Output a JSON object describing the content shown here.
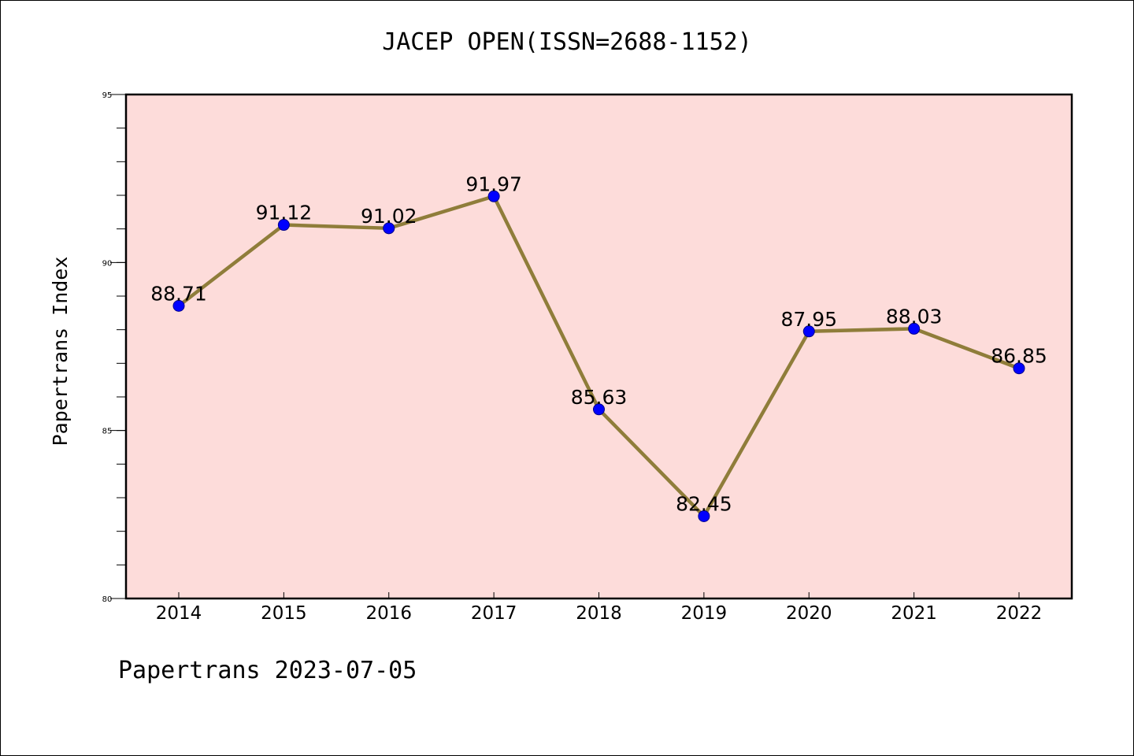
{
  "chart_data": {
    "type": "line",
    "title": "JACEP OPEN(ISSN=2688-1152)",
    "xlabel": "",
    "ylabel": "Papertrans Index",
    "categories": [
      "2014",
      "2015",
      "2016",
      "2017",
      "2018",
      "2019",
      "2020",
      "2021",
      "2022"
    ],
    "series": [
      {
        "values": [
          88.71,
          91.12,
          91.02,
          91.97,
          85.63,
          82.45,
          87.95,
          88.03,
          86.85
        ],
        "labels": [
          "88.71",
          "91.12",
          "91.02",
          "91.97",
          "85.63",
          "82.45",
          "87.95",
          "88.03",
          "86.85"
        ]
      }
    ],
    "ylim": [
      80,
      95
    ],
    "yticks": [
      "80",
      "85",
      "90",
      "95"
    ],
    "grid": false,
    "legend": "none",
    "colors": {
      "plot_background": "#FDDCDA",
      "line": "#8F7D3A",
      "marker": "#0000FF",
      "marker_edge": "#00008B",
      "axes": "#000000"
    }
  },
  "footer": "Papertrans 2023-07-05"
}
